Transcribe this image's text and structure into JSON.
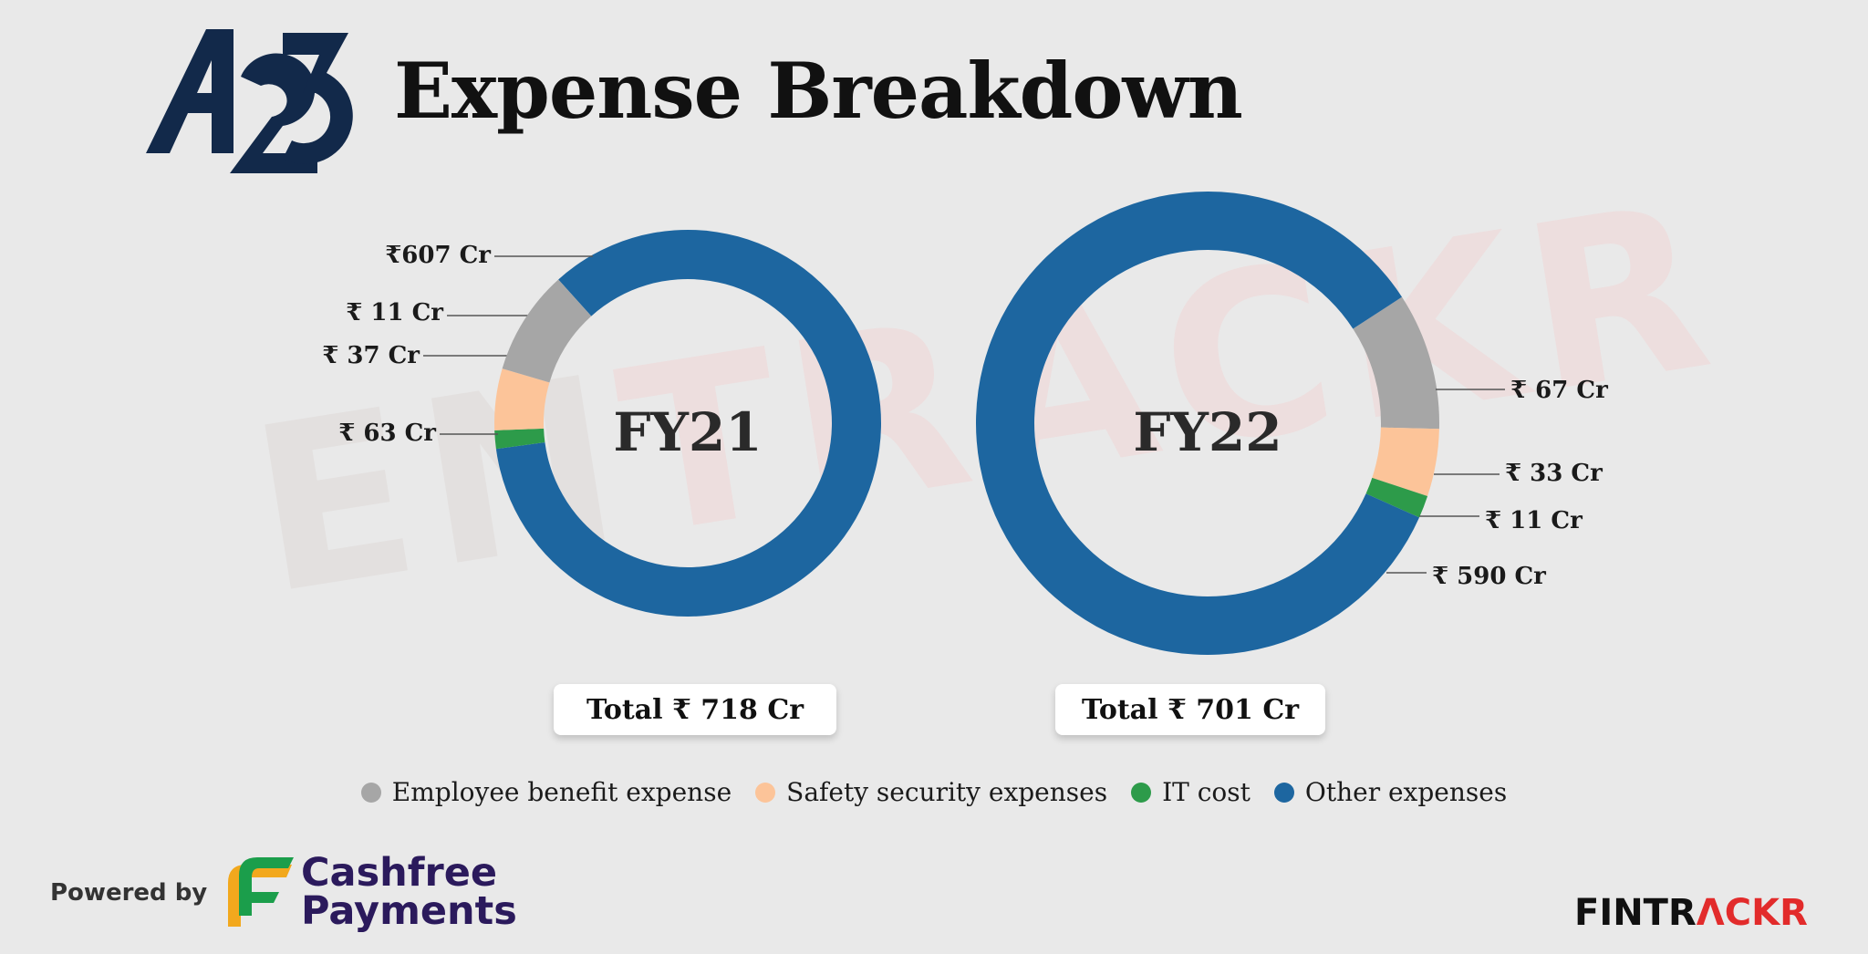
{
  "title": "Expense Breakdown",
  "brand": {
    "logo_text": "A23",
    "watermark": "ENTRACKR"
  },
  "colors": {
    "employee": "#a6a6a6",
    "safety": "#fcc499",
    "it": "#2d9b4a",
    "other": "#1d66a0"
  },
  "chart_data": [
    {
      "type": "pie",
      "center_label": "FY21",
      "total_label": "Total ₹ 718 Cr",
      "slices": [
        {
          "name": "Other expenses",
          "key": "other",
          "value": 607,
          "label": "₹607 Cr"
        },
        {
          "name": "IT cost",
          "key": "it",
          "value": 11,
          "label": "₹ 11 Cr"
        },
        {
          "name": "Safety security expenses",
          "key": "safety",
          "value": 37,
          "label": "₹ 37 Cr"
        },
        {
          "name": "Employee benefit expense",
          "key": "employee",
          "value": 63,
          "label": "₹ 63 Cr"
        }
      ]
    },
    {
      "type": "pie",
      "center_label": "FY22",
      "total_label": "Total ₹ 701 Cr",
      "slices": [
        {
          "name": "Employee benefit expense",
          "key": "employee",
          "value": 67,
          "label": "₹ 67 Cr"
        },
        {
          "name": "Safety security expenses",
          "key": "safety",
          "value": 33,
          "label": "₹ 33 Cr"
        },
        {
          "name": "IT cost",
          "key": "it",
          "value": 11,
          "label": "₹ 11 Cr"
        },
        {
          "name": "Other expenses",
          "key": "other",
          "value": 590,
          "label": "₹ 590 Cr"
        }
      ]
    }
  ],
  "legend": [
    {
      "label": "Employee benefit expense",
      "key": "employee"
    },
    {
      "label": "Safety security expenses",
      "key": "safety"
    },
    {
      "label": "IT cost",
      "key": "it"
    },
    {
      "label": "Other expenses",
      "key": "other"
    }
  ],
  "footer": {
    "powered_by": "Powered by",
    "sponsor_line1": "Cashfree",
    "sponsor_line2": "Payments",
    "brand_part1": "FINTR",
    "brand_part2": "ΛCKR"
  }
}
